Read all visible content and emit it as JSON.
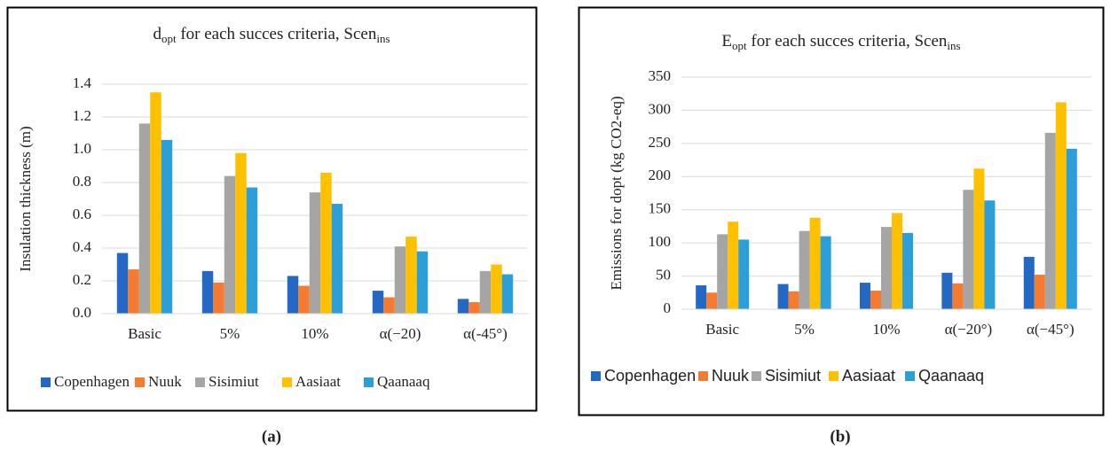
{
  "chart_data": [
    {
      "type": "bar",
      "title": [
        "d",
        "opt",
        " for each succes criteria, Scen",
        "ins"
      ],
      "ylabel": "Insulation thickness (m)",
      "categories": [
        "Basic",
        "5%",
        "10%",
        "α(−20)",
        "α(-45°)"
      ],
      "series": [
        {
          "name": "Copenhagen",
          "color": "#2369c3",
          "values": [
            0.37,
            0.26,
            0.23,
            0.14,
            0.09
          ]
        },
        {
          "name": "Nuuk",
          "color": "#f47b30",
          "values": [
            0.27,
            0.19,
            0.17,
            0.1,
            0.07
          ]
        },
        {
          "name": "Sisimiut",
          "color": "#a5a5a5",
          "values": [
            1.16,
            0.84,
            0.74,
            0.41,
            0.26
          ]
        },
        {
          "name": "Aasiaat",
          "color": "#ffc000",
          "values": [
            1.35,
            0.98,
            0.86,
            0.47,
            0.3
          ]
        },
        {
          "name": "Qaanaaq",
          "color": "#2c9fd8",
          "values": [
            1.06,
            0.77,
            0.67,
            0.38,
            0.24
          ]
        }
      ],
      "ylim": [
        0,
        1.4
      ],
      "yticks": [
        {
          "value": 0,
          "label": "0.0"
        },
        0.2,
        0.4,
        0.6,
        0.8,
        {
          "value": 1,
          "label": "1.0"
        },
        1.2,
        1.4
      ],
      "grid": true,
      "legend": "bottom",
      "caption": "(a)"
    },
    {
      "type": "bar",
      "title": [
        "E",
        "opt",
        " for each succes criteria, Scen",
        "ins"
      ],
      "ylabel": "Emissions for dopt (kg CO2-eq)",
      "categories": [
        "Basic",
        "5%",
        "10%",
        "α(−20°)",
        "α(−45°)"
      ],
      "series": [
        {
          "name": "Copenhagen",
          "color": "#2369c3",
          "values": [
            36,
            38,
            40,
            55,
            79
          ]
        },
        {
          "name": "Nuuk",
          "color": "#f47b30",
          "values": [
            25,
            27,
            28,
            39,
            52
          ]
        },
        {
          "name": "Sisimiut",
          "color": "#a5a5a5",
          "values": [
            113,
            118,
            124,
            180,
            266
          ]
        },
        {
          "name": "Aasiaat",
          "color": "#ffc000",
          "values": [
            132,
            138,
            145,
            212,
            312
          ]
        },
        {
          "name": "Qaanaaq",
          "color": "#2c9fd8",
          "values": [
            105,
            110,
            115,
            164,
            242
          ]
        }
      ],
      "ylim": [
        0,
        350
      ],
      "yticks": [
        0,
        50,
        100,
        150,
        200,
        250,
        300,
        350
      ],
      "grid": true,
      "legend": "bottom",
      "caption": "(b)"
    }
  ]
}
